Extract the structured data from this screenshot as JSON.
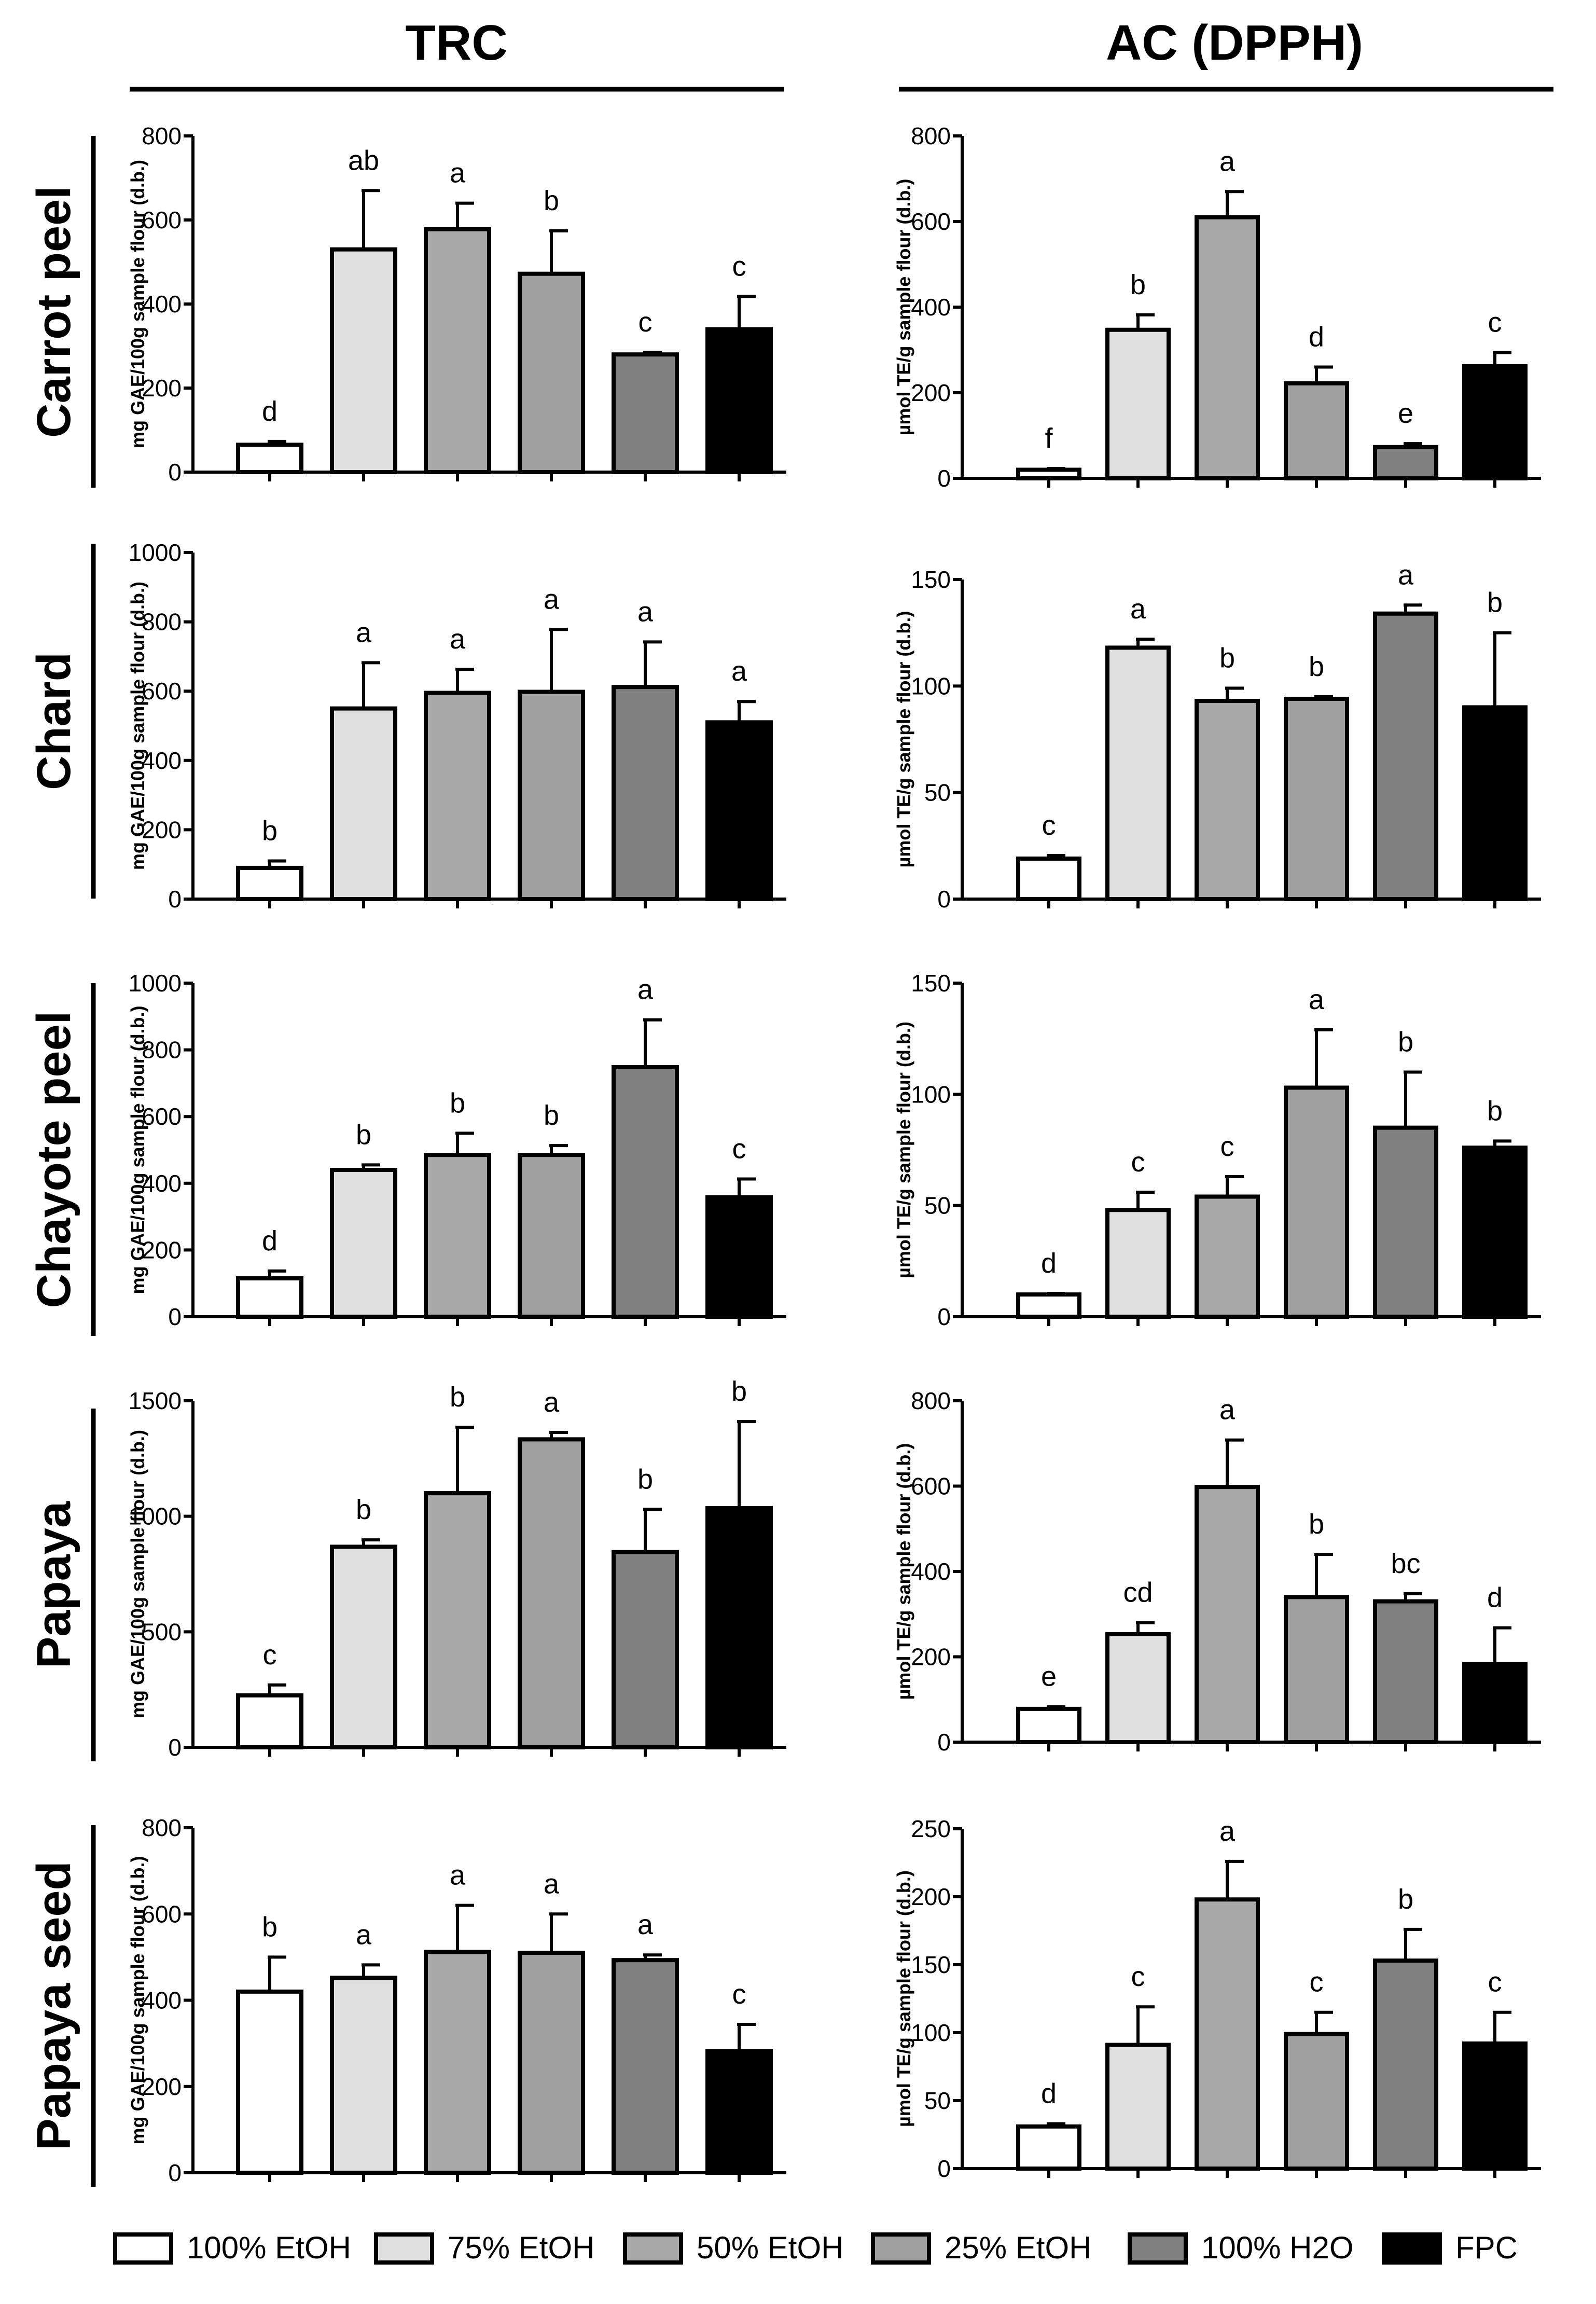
{
  "columns": [
    {
      "title": "TRC",
      "ylabel": "mg GAE/100g sample flour (d.b.)"
    },
    {
      "title": "AC (DPPH)",
      "ylabel": "µmol TE/g sample flour (d.b.)"
    }
  ],
  "rows": [
    "Carrot peel",
    "Chard",
    "Chayote peel",
    "Papaya",
    "Papaya seed"
  ],
  "legend": [
    {
      "label": "100% EtOH",
      "color": "#ffffff"
    },
    {
      "label": "75% EtOH",
      "color": "#e0e0e0"
    },
    {
      "label": "50% EtOH",
      "color": "#a9a9a9"
    },
    {
      "label": "25% EtOH",
      "color": "#a0a0a0"
    },
    {
      "label": "100% H2O",
      "color": "#808080"
    },
    {
      "label": "FPC",
      "color": "#000000"
    }
  ],
  "chart_data": [
    {
      "type": "bar",
      "row": 0,
      "col": 0,
      "title": "TRC",
      "group": "Carrot peel",
      "ylabel": "mg GAE/100g sample flour (d.b.)",
      "categories": [
        "100% EtOH",
        "75% EtOH",
        "50% EtOH",
        "25% EtOH",
        "100% H2O",
        "FPC"
      ],
      "values": [
        65,
        530,
        578,
        472,
        280,
        340
      ],
      "errors": [
        8,
        140,
        62,
        102,
        5,
        78
      ],
      "labels": [
        "d",
        "ab",
        "a",
        "b",
        "c",
        "c"
      ],
      "ylim": [
        0,
        800
      ],
      "ticks": [
        0,
        200,
        400,
        600,
        800
      ]
    },
    {
      "type": "bar",
      "row": 0,
      "col": 1,
      "title": "AC (DPPH)",
      "group": "Carrot peel",
      "ylabel": "µmol TE/g sample flour (d.b.)",
      "categories": [
        "100% EtOH",
        "75% EtOH",
        "50% EtOH",
        "25% EtOH",
        "100% H2O",
        "FPC"
      ],
      "values": [
        20,
        347,
        610,
        222,
        73,
        262
      ],
      "errors": [
        3,
        35,
        60,
        38,
        8,
        32
      ],
      "labels": [
        "f",
        "b",
        "a",
        "d",
        "e",
        "c"
      ],
      "ylim": [
        0,
        800
      ],
      "ticks": [
        0,
        200,
        400,
        600,
        800
      ]
    },
    {
      "type": "bar",
      "row": 1,
      "col": 0,
      "title": "TRC",
      "group": "Chard",
      "ylabel": "mg GAE/100g sample flour (d.b.)",
      "categories": [
        "100% EtOH",
        "75% EtOH",
        "50% EtOH",
        "25% EtOH",
        "100% H2O",
        "FPC"
      ],
      "values": [
        90,
        550,
        595,
        598,
        612,
        510
      ],
      "errors": [
        20,
        132,
        68,
        180,
        130,
        60
      ],
      "labels": [
        "b",
        "a",
        "a",
        "a",
        "a",
        "a"
      ],
      "ylim": [
        0,
        1000
      ],
      "ticks": [
        0,
        200,
        400,
        600,
        800,
        1000
      ]
    },
    {
      "type": "bar",
      "row": 1,
      "col": 1,
      "title": "AC (DPPH)",
      "group": "Chard",
      "ylabel": "µmol TE/g sample flour (d.b.)",
      "categories": [
        "100% EtOH",
        "75% EtOH",
        "50% EtOH",
        "25% EtOH",
        "100% H2O",
        "FPC"
      ],
      "values": [
        19,
        118,
        93,
        94,
        134,
        90
      ],
      "errors": [
        1.5,
        4,
        6,
        1,
        4,
        35
      ],
      "labels": [
        "c",
        "a",
        "b",
        "b",
        "a",
        "b"
      ],
      "ylim": [
        0,
        150
      ],
      "ticks": [
        0,
        50,
        100,
        150
      ]
    },
    {
      "type": "bar",
      "row": 2,
      "col": 0,
      "title": "TRC",
      "group": "Chayote peel",
      "ylabel": "mg GAE/100g sample flour (d.b.)",
      "categories": [
        "100% EtOH",
        "75% EtOH",
        "50% EtOH",
        "25% EtOH",
        "100% H2O",
        "FPC"
      ],
      "values": [
        115,
        440,
        485,
        485,
        748,
        358
      ],
      "errors": [
        22,
        15,
        65,
        28,
        142,
        55
      ],
      "labels": [
        "d",
        "b",
        "b",
        "b",
        "a",
        "c"
      ],
      "ylim": [
        0,
        1000
      ],
      "ticks": [
        0,
        200,
        400,
        600,
        800,
        1000
      ]
    },
    {
      "type": "bar",
      "row": 2,
      "col": 1,
      "title": "AC (DPPH)",
      "group": "Chayote peel",
      "ylabel": "µmol TE/g sample flour (d.b.)",
      "categories": [
        "100% EtOH",
        "75% EtOH",
        "50% EtOH",
        "25% EtOH",
        "100% H2O",
        "FPC"
      ],
      "values": [
        10,
        48,
        54,
        103,
        85,
        76
      ],
      "errors": [
        0.5,
        8,
        9,
        26,
        25,
        3
      ],
      "labels": [
        "d",
        "c",
        "c",
        "a",
        "b",
        "b"
      ],
      "ylim": [
        0,
        150
      ],
      "ticks": [
        0,
        50,
        100,
        150
      ]
    },
    {
      "type": "bar",
      "row": 3,
      "col": 0,
      "title": "TRC",
      "group": "Papaya",
      "ylabel": "mg GAE/100g sample flour (d.b.)",
      "categories": [
        "100% EtOH",
        "75% EtOH",
        "50% EtOH",
        "25% EtOH",
        "100% H2O",
        "FPC"
      ],
      "values": [
        225,
        868,
        1100,
        1333,
        845,
        1035
      ],
      "errors": [
        45,
        30,
        285,
        30,
        185,
        375
      ],
      "labels": [
        "c",
        "b",
        "b",
        "a",
        "b",
        "b"
      ],
      "ylim": [
        0,
        1500
      ],
      "ticks": [
        0,
        500,
        1000,
        1500
      ]
    },
    {
      "type": "bar",
      "row": 3,
      "col": 1,
      "title": "AC (DPPH)",
      "group": "Papaya",
      "ylabel": "µmol TE/g sample flour (d.b.)",
      "categories": [
        "100% EtOH",
        "75% EtOH",
        "50% EtOH",
        "25% EtOH",
        "100% H2O",
        "FPC"
      ],
      "values": [
        78,
        253,
        598,
        340,
        330,
        183
      ],
      "errors": [
        5,
        27,
        110,
        100,
        18,
        85
      ],
      "labels": [
        "e",
        "cd",
        "a",
        "b",
        "bc",
        "d"
      ],
      "ylim": [
        0,
        800
      ],
      "ticks": [
        0,
        200,
        400,
        600,
        800
      ]
    },
    {
      "type": "bar",
      "row": 4,
      "col": 0,
      "title": "TRC",
      "group": "Papaya seed",
      "ylabel": "mg GAE/100g sample flour (d.b.)",
      "categories": [
        "100% EtOH",
        "75% EtOH",
        "50% EtOH",
        "25% EtOH",
        "100% H2O",
        "FPC"
      ],
      "values": [
        420,
        452,
        512,
        510,
        493,
        282
      ],
      "errors": [
        80,
        30,
        108,
        90,
        12,
        62
      ],
      "labels": [
        "b",
        "a",
        "a",
        "a",
        "a",
        "c"
      ],
      "ylim": [
        0,
        800
      ],
      "ticks": [
        0,
        200,
        400,
        600,
        800
      ]
    },
    {
      "type": "bar",
      "row": 4,
      "col": 1,
      "title": "AC (DPPH)",
      "group": "Papaya seed",
      "ylabel": "µmol TE/g sample flour (d.b.)",
      "categories": [
        "100% EtOH",
        "75% EtOH",
        "50% EtOH",
        "25% EtOH",
        "100% H2O",
        "FPC"
      ],
      "values": [
        31,
        91,
        198,
        99,
        153,
        92
      ],
      "errors": [
        2,
        28,
        28,
        16,
        23,
        23
      ],
      "labels": [
        "d",
        "c",
        "a",
        "c",
        "b",
        "c"
      ],
      "ylim": [
        0,
        250
      ],
      "ticks": [
        0,
        50,
        100,
        150,
        200,
        250
      ]
    }
  ]
}
